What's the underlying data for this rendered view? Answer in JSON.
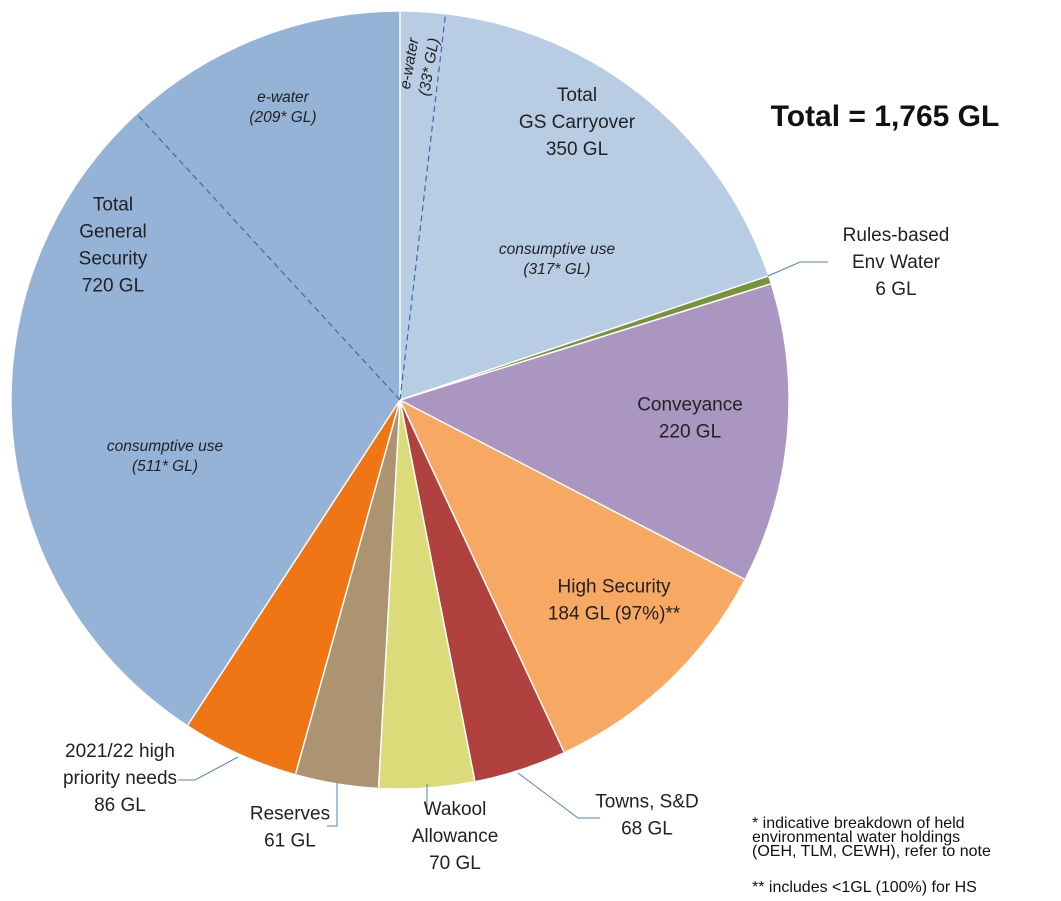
{
  "chart_data": {
    "type": "pie",
    "title": "Total = 1,765 GL",
    "slices": [
      {
        "lines": [
          "e-water",
          "(33* GL)"
        ],
        "value": 33,
        "color": "#b8cce4",
        "italic": true,
        "group": "carryover"
      },
      {
        "lines": [
          "consumptive use",
          "(317* GL)"
        ],
        "value": 317,
        "color": "#b8cce4",
        "italic": true,
        "group": "carryover"
      },
      {
        "lines": [
          "Rules-based",
          "Env Water",
          "6 GL"
        ],
        "value": 6,
        "color": "#77933c",
        "italic": false
      },
      {
        "lines": [
          "Conveyance",
          "220 GL"
        ],
        "value": 220,
        "color": "#aa96c0",
        "italic": false
      },
      {
        "lines": [
          "High Security",
          "184 GL (97%)**"
        ],
        "value": 184,
        "color": "#f7a964",
        "italic": false
      },
      {
        "lines": [
          "Towns, S&D",
          "68 GL"
        ],
        "value": 68,
        "color": "#b0413e",
        "italic": false
      },
      {
        "lines": [
          "Wakool",
          "Allowance",
          "70 GL"
        ],
        "value": 70,
        "color": "#dbdb7a",
        "italic": false
      },
      {
        "lines": [
          "Reserves",
          "61 GL"
        ],
        "value": 61,
        "color": "#ac9472",
        "italic": false
      },
      {
        "lines": [
          "2021/22 high",
          "priority needs",
          "86 GL"
        ],
        "value": 86,
        "color": "#f07515",
        "italic": false
      },
      {
        "lines": [
          "consumptive use",
          "(511* GL)"
        ],
        "value": 511,
        "color": "#95b3d7",
        "italic": true,
        "group": "general"
      },
      {
        "lines": [
          "e-water",
          "(209* GL)"
        ],
        "value": 209,
        "color": "#95b3d7",
        "italic": true,
        "group": "general"
      }
    ],
    "group_labels": [
      {
        "group": "carryover",
        "lines": [
          "Total",
          "GS Carryover",
          "350 GL"
        ]
      },
      {
        "group": "general",
        "lines": [
          "Total",
          "General",
          "Security",
          "720 GL"
        ]
      }
    ],
    "notes": [
      [
        "* indicative breakdown of held",
        "environmental water holdings",
        "(OEH, TLM, CEWH), refer to note"
      ],
      [
        "** includes <1GL (100%) for HS"
      ]
    ]
  }
}
